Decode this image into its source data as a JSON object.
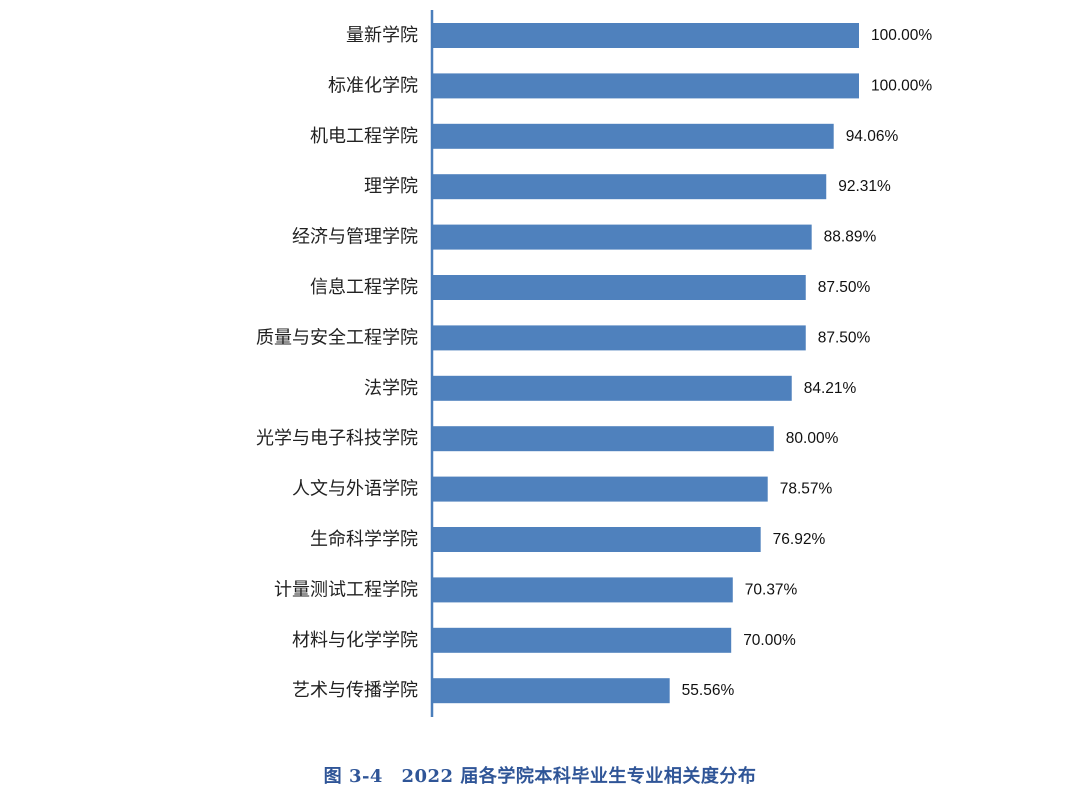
{
  "caption": "图 3-4　2022 届各学院本科毕业生专业相关度分布",
  "colors": {
    "bar": "#4f81bd",
    "axis": "#4a7ebb",
    "caption": "#2f5597"
  },
  "chart_data": {
    "type": "bar",
    "orientation": "horizontal",
    "title": "图 3-4　2022 届各学院本科毕业生专业相关度分布",
    "categories": [
      "量新学院",
      "标准化学院",
      "机电工程学院",
      "理学院",
      "经济与管理学院",
      "信息工程学院",
      "质量与安全工程学院",
      "法学院",
      "光学与电子科技学院",
      "人文与外语学院",
      "生命科学学院",
      "计量测试工程学院",
      "材料与化学学院",
      "艺术与传播学院"
    ],
    "values": [
      100.0,
      100.0,
      94.06,
      92.31,
      88.89,
      87.5,
      87.5,
      84.21,
      80.0,
      78.57,
      76.92,
      70.37,
      70.0,
      55.56
    ],
    "value_labels": [
      "100.00%",
      "100.00%",
      "94.06%",
      "92.31%",
      "88.89%",
      "87.50%",
      "87.50%",
      "84.21%",
      "80.00%",
      "78.57%",
      "76.92%",
      "70.37%",
      "70.00%",
      "55.56%"
    ],
    "xlim": [
      0,
      100
    ],
    "grid": false,
    "legend": "none"
  }
}
